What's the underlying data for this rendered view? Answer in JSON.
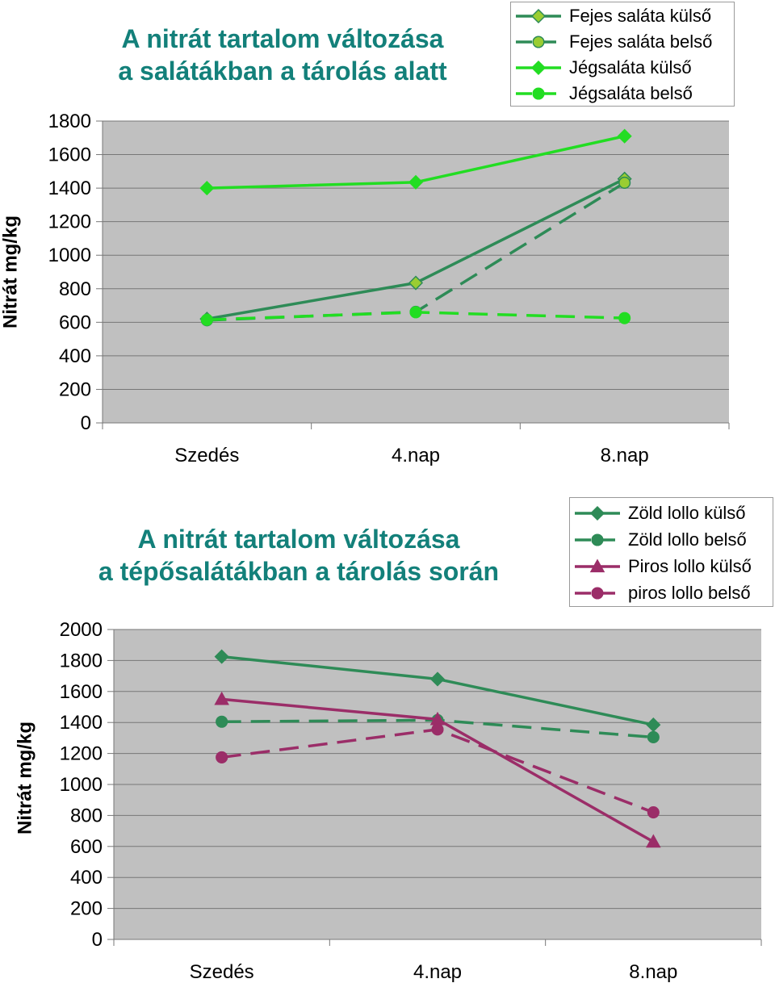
{
  "chart_data": [
    {
      "type": "line",
      "title_lines": [
        "A nitrát tartalom változása",
        "a salátákban a tárolás alatt"
      ],
      "ylabel": "Nitrát mg/kg",
      "xlabel": "",
      "categories": [
        "Szedés",
        "4.nap",
        "8.nap"
      ],
      "ylim": [
        0,
        1800
      ],
      "yticks": [
        0,
        200,
        400,
        600,
        800,
        1000,
        1200,
        1400,
        1600,
        1800
      ],
      "grid": true,
      "legend_position": "top-right",
      "series": [
        {
          "name": "Fejes saláta külső",
          "values": [
            620,
            835,
            1455
          ],
          "color": "#2e8b57",
          "marker_fill": "#9acd32",
          "marker": "diamond",
          "dash": "solid"
        },
        {
          "name": "Fejes saláta belső",
          "values": [
            612,
            662,
            1432
          ],
          "color": "#2e8b57",
          "marker_fill": "#9acd32",
          "marker": "circle",
          "dash": "dashed"
        },
        {
          "name": "Jégsaláta külső",
          "values": [
            1400,
            1435,
            1710
          ],
          "color": "#22dd22",
          "marker_fill": "#22dd22",
          "marker": "diamond",
          "dash": "solid"
        },
        {
          "name": "Jégsaláta belső",
          "values": [
            615,
            660,
            625
          ],
          "color": "#22dd22",
          "marker_fill": "#22dd22",
          "marker": "circle",
          "dash": "dashed"
        }
      ]
    },
    {
      "type": "line",
      "title_lines": [
        "A nitrát tartalom változása",
        "a tépősalátákban a tárolás során"
      ],
      "ylabel": "Nitrát mg/kg",
      "xlabel": "",
      "categories": [
        "Szedés",
        "4.nap",
        "8.nap"
      ],
      "ylim": [
        0,
        2000
      ],
      "yticks": [
        0,
        200,
        400,
        600,
        800,
        1000,
        1200,
        1400,
        1600,
        1800,
        2000
      ],
      "grid": true,
      "legend_position": "top-right",
      "series": [
        {
          "name": "Zöld lollo külső",
          "values": [
            1825,
            1680,
            1385
          ],
          "color": "#2e8b57",
          "marker_fill": "#2e8b57",
          "marker": "diamond",
          "dash": "solid"
        },
        {
          "name": "Zöld lollo belső",
          "values": [
            1405,
            1415,
            1305
          ],
          "color": "#2e8b57",
          "marker_fill": "#2e8b57",
          "marker": "circle",
          "dash": "dashed"
        },
        {
          "name": "Piros lollo külső",
          "values": [
            1550,
            1420,
            630
          ],
          "color": "#9b2d68",
          "marker_fill": "#9b2d68",
          "marker": "triangle",
          "dash": "solid"
        },
        {
          "name": "piros lollo belső",
          "values": [
            1175,
            1355,
            820
          ],
          "color": "#9b2d68",
          "marker_fill": "#9b2d68",
          "marker": "circle",
          "dash": "dashed"
        }
      ]
    }
  ]
}
